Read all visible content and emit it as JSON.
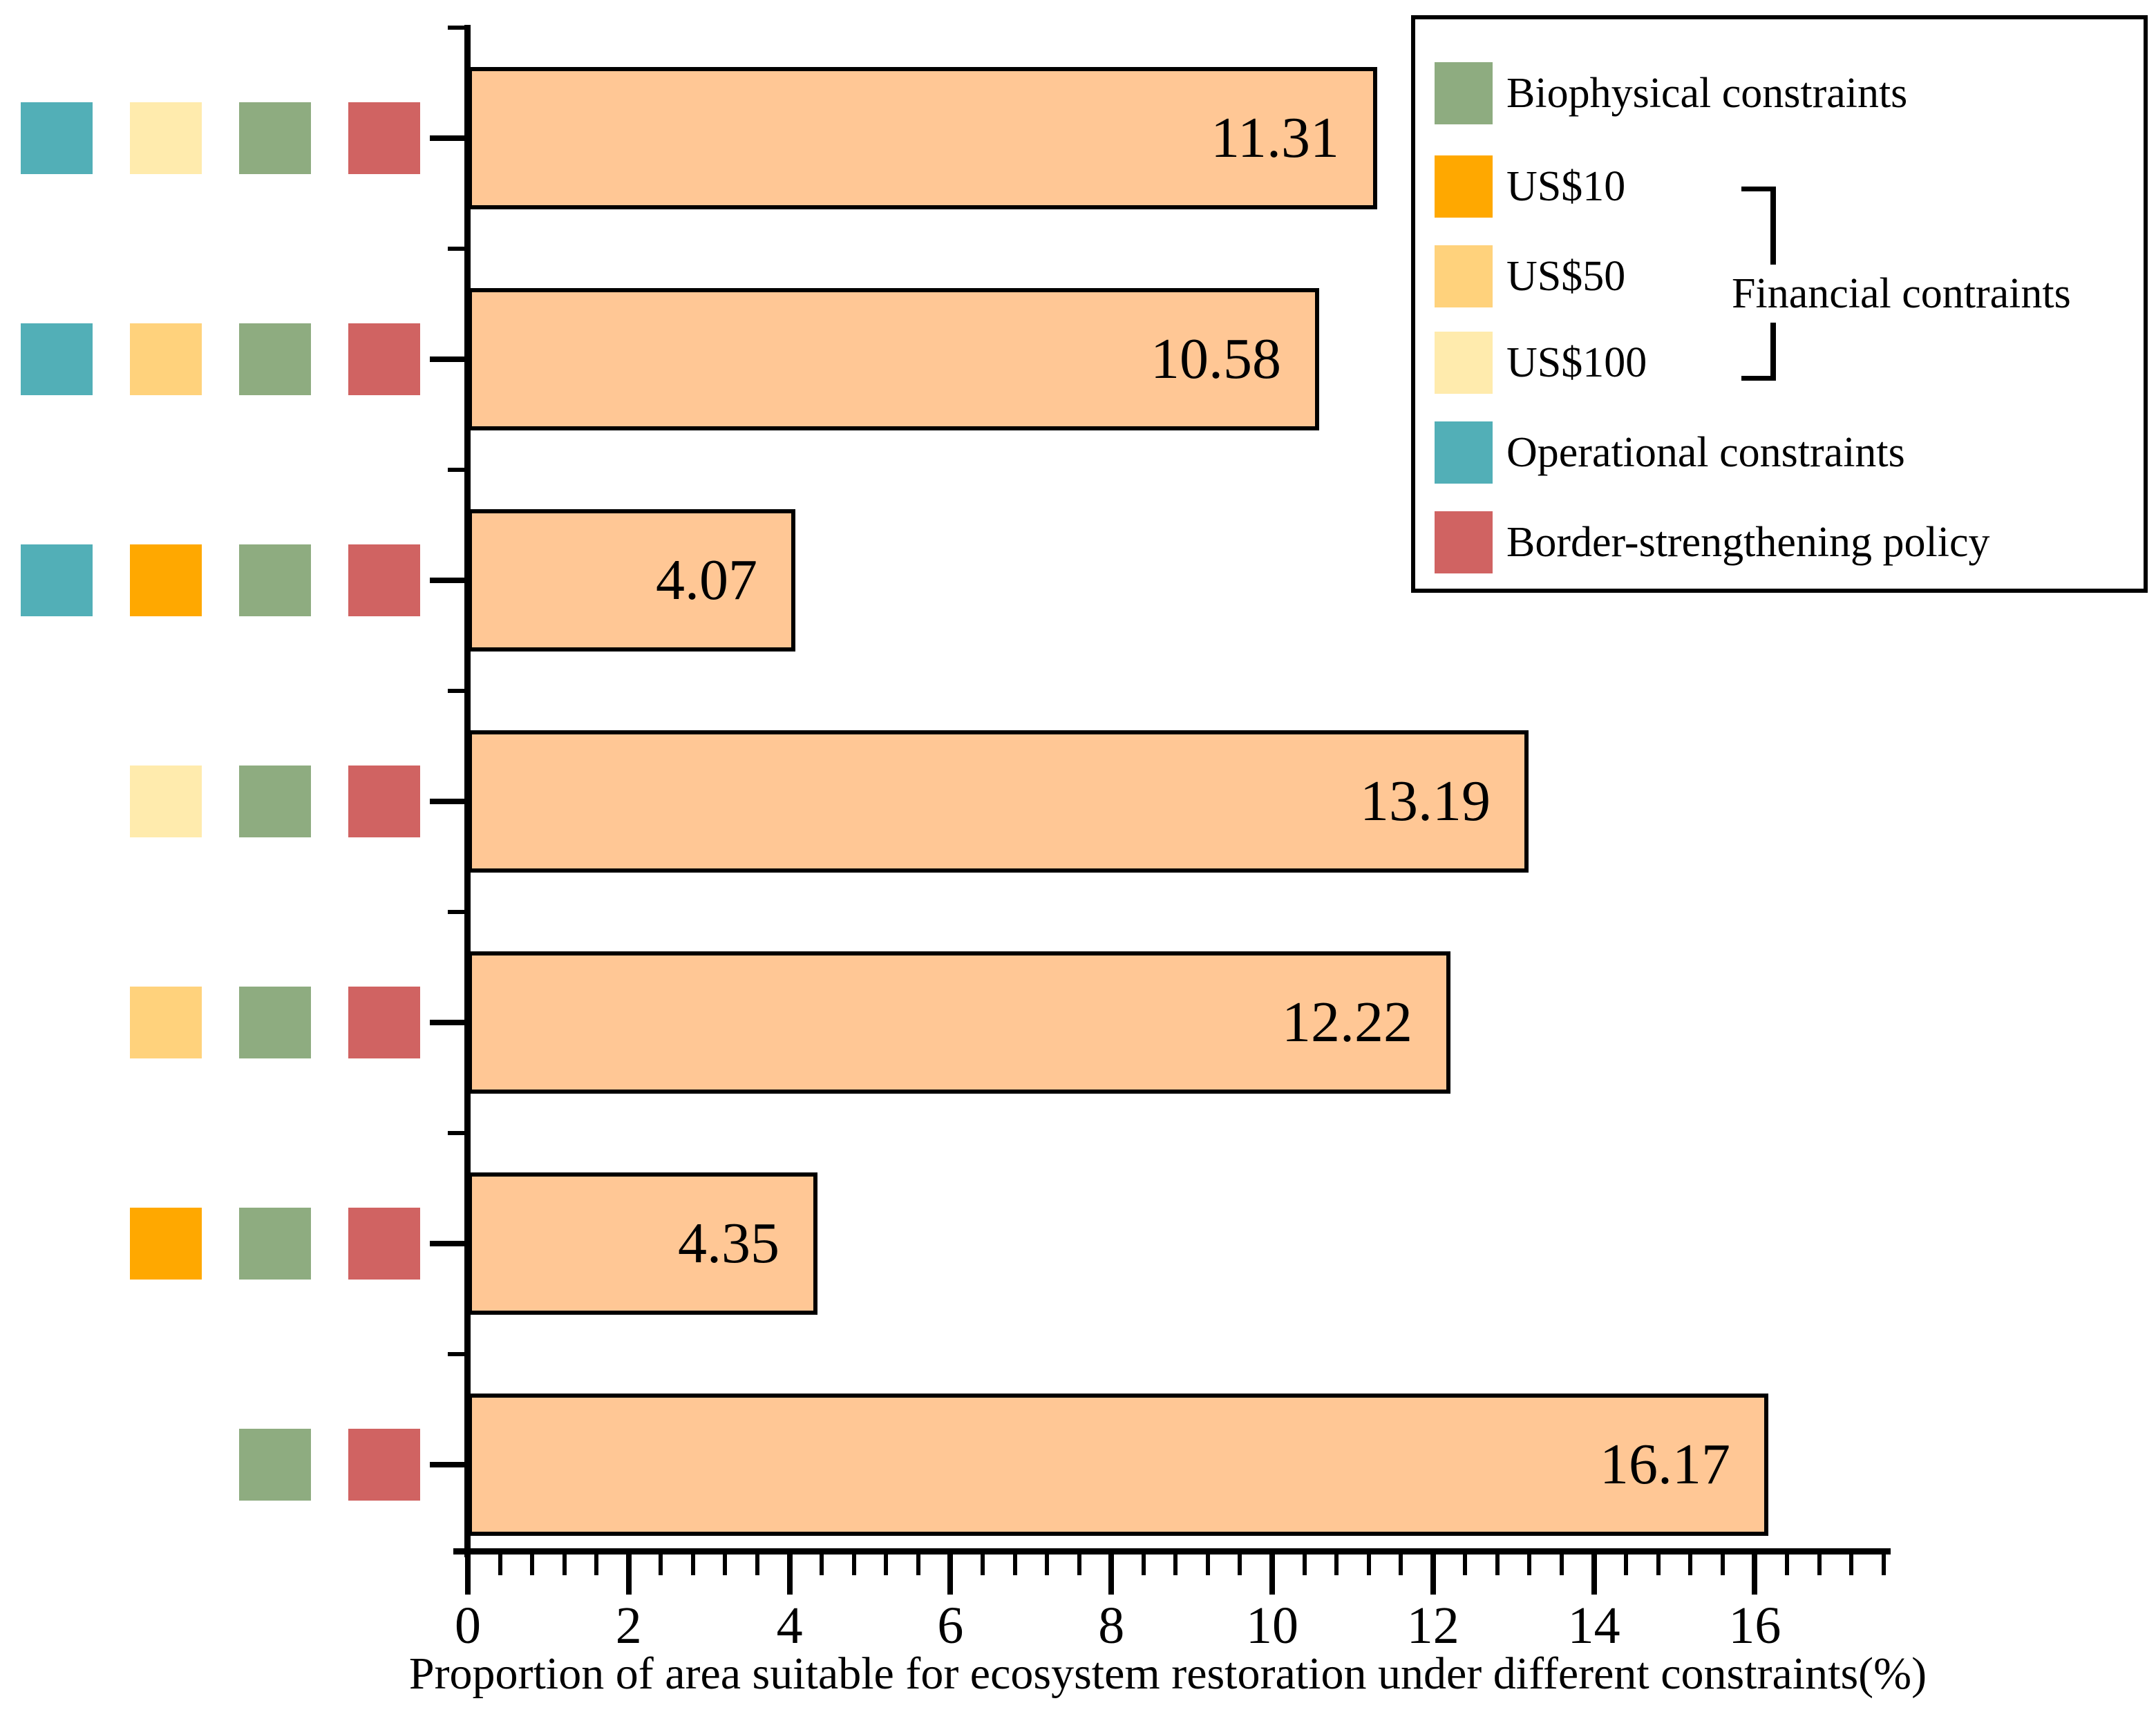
{
  "palette": {
    "bar_fill": "#FFC795",
    "bar_border": "#000000",
    "biophysical": "#8EAC80",
    "us10": "#FFA800",
    "us50": "#FFD27C",
    "us100": "#FFEBAD",
    "operational": "#52AFB7",
    "border_policy": "#D06362",
    "axis": "#000000"
  },
  "chart_data": {
    "type": "bar",
    "orientation": "horizontal",
    "title": "",
    "xlabel": "Proportion of area suitable for ecosystem restoration under different constraints(%)",
    "ylabel": "",
    "xlim": [
      0,
      17.7
    ],
    "x_major_ticks": [
      0,
      2,
      4,
      6,
      8,
      10,
      12,
      14,
      16
    ],
    "x_major_tick_labels": [
      "0",
      "2",
      "4",
      "6",
      "8",
      "10",
      "12",
      "14",
      "16"
    ],
    "x_minor_tick_step": 0.4,
    "grid": false,
    "values": [
      11.31,
      10.58,
      4.07,
      13.19,
      12.22,
      4.35,
      16.17
    ],
    "value_labels": [
      "11.31",
      "10.58",
      "4.07",
      "13.19",
      "12.22",
      "4.35",
      "16.17"
    ],
    "row_constraints": [
      [
        "operational",
        "us100",
        "biophysical",
        "border_policy"
      ],
      [
        "operational",
        "us50",
        "biophysical",
        "border_policy"
      ],
      [
        "operational",
        "us10",
        "biophysical",
        "border_policy"
      ],
      [
        null,
        "us100",
        "biophysical",
        "border_policy"
      ],
      [
        null,
        "us50",
        "biophysical",
        "border_policy"
      ],
      [
        null,
        "us10",
        "biophysical",
        "border_policy"
      ],
      [
        null,
        null,
        "biophysical",
        "border_policy"
      ]
    ],
    "legend_position": "top-right"
  },
  "legend": {
    "items": [
      {
        "label": "Biophysical constraints",
        "color_key": "biophysical"
      },
      {
        "label": "US$10",
        "color_key": "us10"
      },
      {
        "label": "US$50",
        "color_key": "us50"
      },
      {
        "label": "US$100",
        "color_key": "us100"
      },
      {
        "label": "Operational constraints",
        "color_key": "operational"
      },
      {
        "label": "Border-strengthening policy",
        "color_key": "border_policy"
      }
    ],
    "group_label": "Financial contraints"
  }
}
